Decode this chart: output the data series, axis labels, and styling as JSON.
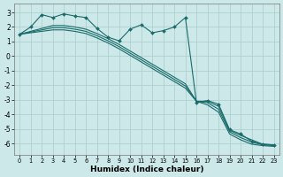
{
  "xlabel": "Humidex (Indice chaleur)",
  "bg_color": "#cce8e8",
  "grid_color": "#aacccc",
  "line_color": "#1a6b6b",
  "xlim": [
    -0.5,
    23.5
  ],
  "ylim": [
    -6.8,
    3.6
  ],
  "yticks": [
    -6,
    -5,
    -4,
    -3,
    -2,
    -1,
    0,
    1,
    2,
    3
  ],
  "xticks": [
    0,
    1,
    2,
    3,
    4,
    5,
    6,
    7,
    8,
    9,
    10,
    11,
    12,
    13,
    14,
    15,
    16,
    17,
    18,
    19,
    20,
    21,
    22,
    23
  ],
  "jagged_x": [
    0,
    1,
    2,
    3,
    4,
    5,
    6,
    7,
    8,
    9,
    10,
    11,
    12,
    13,
    14,
    15,
    16,
    17,
    18,
    19,
    20,
    21,
    22,
    23
  ],
  "jagged_y": [
    1.5,
    2.0,
    2.85,
    2.65,
    2.9,
    2.75,
    2.65,
    1.9,
    1.3,
    1.05,
    1.85,
    2.15,
    1.6,
    1.75,
    2.0,
    2.65,
    -3.2,
    -3.05,
    -3.3,
    -5.05,
    -5.35,
    -5.85,
    -6.05,
    -6.1
  ],
  "diag1_x": [
    0,
    1,
    2,
    3,
    4,
    5,
    6,
    7,
    8,
    9,
    10,
    11,
    12,
    13,
    14,
    15,
    16,
    17,
    18,
    19,
    20,
    21,
    22,
    23
  ],
  "diag1_y": [
    1.5,
    1.7,
    1.9,
    2.1,
    2.1,
    2.0,
    1.85,
    1.55,
    1.2,
    0.8,
    0.35,
    -0.1,
    -0.55,
    -1.0,
    -1.45,
    -1.9,
    -3.1,
    -3.1,
    -3.45,
    -5.1,
    -5.45,
    -5.75,
    -6.05,
    -6.1
  ],
  "diag2_x": [
    0,
    1,
    2,
    3,
    4,
    5,
    6,
    7,
    8,
    9,
    10,
    11,
    12,
    13,
    14,
    15,
    16,
    17,
    18,
    19,
    20,
    21,
    22,
    23
  ],
  "diag2_y": [
    1.5,
    1.65,
    1.8,
    1.95,
    1.95,
    1.85,
    1.7,
    1.4,
    1.05,
    0.65,
    0.2,
    -0.25,
    -0.7,
    -1.15,
    -1.6,
    -2.05,
    -3.1,
    -3.2,
    -3.65,
    -5.2,
    -5.6,
    -5.9,
    -6.1,
    -6.15
  ],
  "diag3_x": [
    0,
    1,
    2,
    3,
    4,
    5,
    6,
    7,
    8,
    9,
    10,
    11,
    12,
    13,
    14,
    15,
    16,
    17,
    18,
    19,
    20,
    21,
    22,
    23
  ],
  "diag3_y": [
    1.5,
    1.6,
    1.7,
    1.8,
    1.8,
    1.7,
    1.55,
    1.25,
    0.9,
    0.5,
    0.05,
    -0.4,
    -0.85,
    -1.3,
    -1.75,
    -2.2,
    -3.1,
    -3.35,
    -3.85,
    -5.35,
    -5.75,
    -6.05,
    -6.15,
    -6.2
  ]
}
